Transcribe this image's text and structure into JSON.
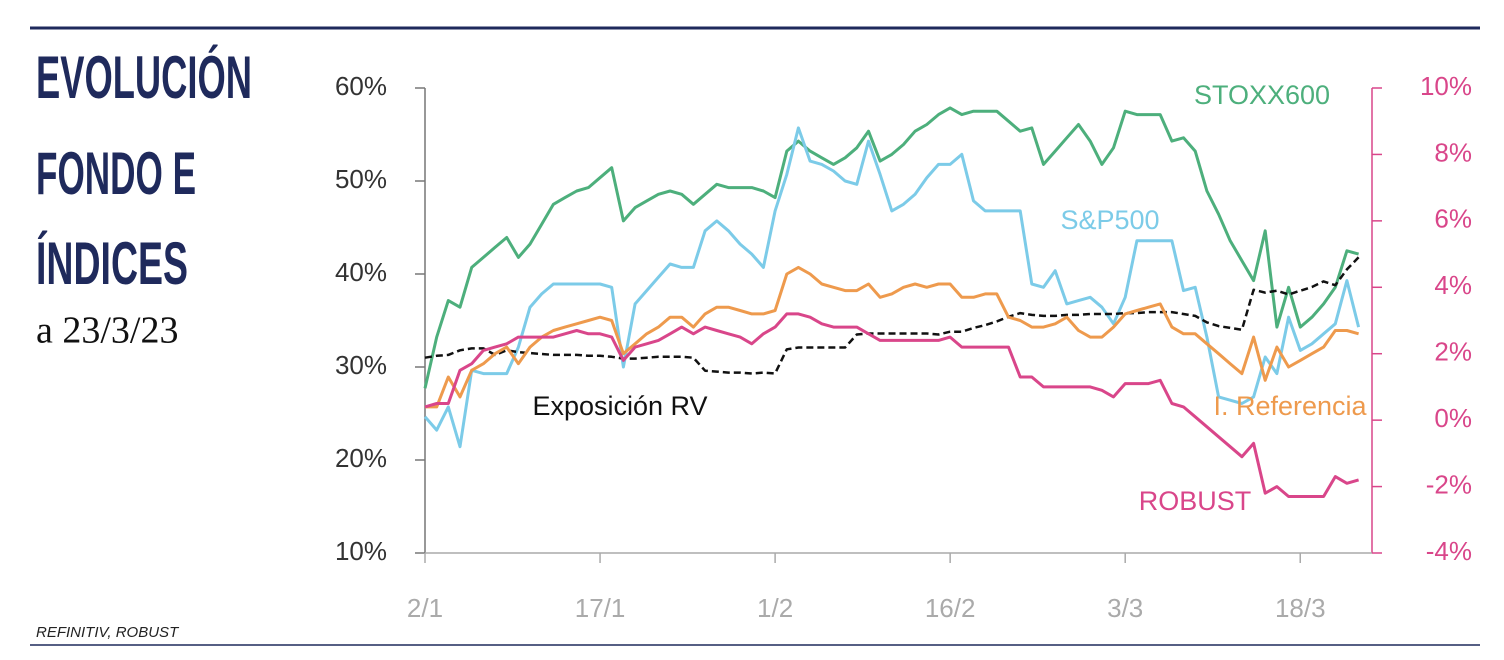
{
  "chart_data": {
    "type": "line",
    "title": [
      "EVOLUCIÓN",
      "FONDO E",
      "ÍNDICES"
    ],
    "subtitle": "a 23/3/23",
    "source": "REFINITIV, ROBUST",
    "categories": [
      "2/1",
      null,
      null,
      null,
      null,
      null,
      null,
      null,
      null,
      null,
      null,
      null,
      null,
      null,
      null,
      "17/1",
      null,
      null,
      null,
      null,
      null,
      null,
      null,
      null,
      null,
      null,
      null,
      null,
      null,
      null,
      "1/2",
      null,
      null,
      null,
      null,
      null,
      null,
      null,
      null,
      null,
      null,
      null,
      null,
      null,
      null,
      "16/2",
      null,
      null,
      null,
      null,
      null,
      null,
      null,
      null,
      null,
      null,
      null,
      null,
      null,
      null,
      "3/3",
      null,
      null,
      null,
      null,
      null,
      null,
      null,
      null,
      null,
      null,
      null,
      null,
      null,
      null,
      "18/3",
      null,
      null,
      null,
      null,
      null
    ],
    "ylim": [
      10,
      60
    ],
    "yticks": [
      {
        "value": 10,
        "label": "10%"
      },
      {
        "value": 20,
        "label": "20%"
      },
      {
        "value": 30,
        "label": "30%"
      },
      {
        "value": 40,
        "label": "40%"
      },
      {
        "value": 50,
        "label": "50%"
      },
      {
        "value": 60,
        "label": "60%"
      }
    ],
    "y2lim": [
      -4,
      10
    ],
    "y2ticks": [
      {
        "value": -4,
        "label": "-4%"
      },
      {
        "value": -2,
        "label": "-2%"
      },
      {
        "value": 0,
        "label": "0%"
      },
      {
        "value": 2,
        "label": "2%"
      },
      {
        "value": 4,
        "label": "4%"
      },
      {
        "value": 6,
        "label": "6%"
      },
      {
        "value": 8,
        "label": "8%"
      },
      {
        "value": 10,
        "label": "10%"
      }
    ],
    "series": [
      {
        "name": "STOXX600",
        "color": "#4daf7c",
        "axis": "y2",
        "values": [
          0.96,
          2.5,
          3.6,
          3.4,
          4.6,
          4.9,
          5.2,
          5.5,
          4.9,
          5.3,
          5.9,
          6.5,
          6.7,
          6.9,
          7.0,
          7.3,
          7.6,
          6.0,
          6.4,
          6.6,
          6.8,
          6.9,
          6.8,
          6.5,
          6.8,
          7.1,
          7.0,
          7.0,
          7.0,
          6.9,
          6.7,
          8.1,
          8.4,
          8.1,
          7.9,
          7.7,
          7.9,
          8.2,
          8.7,
          7.8,
          8.0,
          8.3,
          8.7,
          8.9,
          9.2,
          9.4,
          9.2,
          9.3,
          9.3,
          9.3,
          9.0,
          8.7,
          8.8,
          7.7,
          8.1,
          8.5,
          8.9,
          8.4,
          7.7,
          8.2,
          9.3,
          9.2,
          9.2,
          9.2,
          8.4,
          8.5,
          8.1,
          6.9,
          6.2,
          5.4,
          4.8,
          4.2,
          5.7,
          2.8,
          4.0,
          2.8,
          3.1,
          3.5,
          4.0,
          5.1,
          5.0
        ]
      },
      {
        "name": "S&P500",
        "color": "#7ccbe8",
        "axis": "y2",
        "values": [
          0.1,
          -0.3,
          0.4,
          -0.8,
          1.5,
          1.4,
          1.4,
          1.4,
          2.2,
          3.4,
          3.8,
          4.1,
          4.1,
          4.1,
          4.1,
          4.1,
          4.0,
          1.6,
          3.5,
          3.9,
          4.3,
          4.7,
          4.6,
          4.6,
          5.7,
          6.0,
          5.7,
          5.3,
          5.0,
          4.6,
          6.3,
          7.4,
          8.8,
          7.8,
          7.7,
          7.5,
          7.2,
          7.1,
          8.4,
          7.4,
          6.3,
          6.5,
          6.8,
          7.3,
          7.7,
          7.7,
          8.0,
          6.6,
          6.3,
          6.3,
          6.3,
          6.3,
          4.1,
          4.0,
          4.5,
          3.5,
          3.6,
          3.7,
          3.4,
          2.9,
          3.7,
          5.4,
          5.4,
          5.4,
          5.4,
          3.9,
          4.0,
          2.5,
          0.7,
          0.6,
          0.5,
          0.7,
          1.9,
          1.4,
          3.1,
          2.1,
          2.3,
          2.6,
          2.9,
          4.2,
          2.8
        ]
      },
      {
        "name": "Exposición RV",
        "color": "#111111",
        "axis": "y",
        "dash": true,
        "values": [
          31,
          31.2,
          31.3,
          31.8,
          32.0,
          32.0,
          31.3,
          31.8,
          31.6,
          31.5,
          31.4,
          31.3,
          31.3,
          31.3,
          31.2,
          31.2,
          31.1,
          30.9,
          30.9,
          31,
          31.1,
          31.1,
          31.1,
          31,
          29.6,
          29.5,
          29.4,
          29.4,
          29.3,
          29.4,
          29.3,
          31.9,
          32.1,
          32.1,
          32.1,
          32.1,
          32.1,
          33.5,
          33.6,
          33.6,
          33.6,
          33.6,
          33.6,
          33.6,
          33.5,
          33.8,
          33.8,
          34.2,
          34.5,
          34.9,
          35.4,
          35.8,
          35.6,
          35.5,
          35.5,
          35.6,
          35.6,
          35.7,
          35.7,
          35.7,
          35.8,
          35.8,
          35.9,
          35.9,
          35.9,
          35.7,
          35.5,
          34.8,
          34.4,
          34.2,
          34.0,
          38.3,
          38.0,
          38.2,
          37.8,
          38.2,
          38.6,
          39.2,
          38.8,
          40.5,
          41.8
        ]
      },
      {
        "name": "I. Referencia",
        "color": "#ee9a4d",
        "axis": "y2",
        "values": [
          0.4,
          0.4,
          1.3,
          0.7,
          1.5,
          1.7,
          2.0,
          2.2,
          1.7,
          2.2,
          2.5,
          2.7,
          2.8,
          2.9,
          3.0,
          3.1,
          3.0,
          2.0,
          2.3,
          2.6,
          2.8,
          3.1,
          3.1,
          2.8,
          3.2,
          3.4,
          3.4,
          3.3,
          3.2,
          3.2,
          3.3,
          4.4,
          4.6,
          4.4,
          4.1,
          4.0,
          3.9,
          3.9,
          4.1,
          3.7,
          3.8,
          4.0,
          4.1,
          4.0,
          4.1,
          4.1,
          3.7,
          3.7,
          3.8,
          3.8,
          3.1,
          3.0,
          2.8,
          2.8,
          2.9,
          3.1,
          2.7,
          2.5,
          2.5,
          2.8,
          3.2,
          3.3,
          3.4,
          3.5,
          2.8,
          2.6,
          2.6,
          2.3,
          2.0,
          1.7,
          1.4,
          2.5,
          1.2,
          2.2,
          1.6,
          1.8,
          2.0,
          2.2,
          2.7,
          2.7,
          2.6
        ]
      },
      {
        "name": "ROBUST",
        "color": "#d9468a",
        "axis": "y2",
        "values": [
          0.4,
          0.5,
          0.5,
          1.5,
          1.7,
          2.1,
          2.2,
          2.3,
          2.5,
          2.5,
          2.5,
          2.5,
          2.6,
          2.7,
          2.6,
          2.6,
          2.5,
          1.8,
          2.2,
          2.3,
          2.4,
          2.6,
          2.8,
          2.6,
          2.8,
          2.7,
          2.6,
          2.5,
          2.3,
          2.6,
          2.8,
          3.2,
          3.2,
          3.1,
          2.9,
          2.8,
          2.8,
          2.8,
          2.6,
          2.4,
          2.4,
          2.4,
          2.4,
          2.4,
          2.4,
          2.5,
          2.2,
          2.2,
          2.2,
          2.2,
          2.2,
          1.3,
          1.3,
          1.0,
          1.0,
          1.0,
          1.0,
          1.0,
          0.9,
          0.7,
          1.1,
          1.1,
          1.1,
          1.2,
          0.5,
          0.4,
          0.1,
          -0.2,
          -0.5,
          -0.8,
          -1.1,
          -0.7,
          -2.2,
          -2.0,
          -2.3,
          -2.3,
          -2.3,
          -2.3,
          -1.7,
          -1.9,
          -1.8
        ]
      }
    ]
  }
}
